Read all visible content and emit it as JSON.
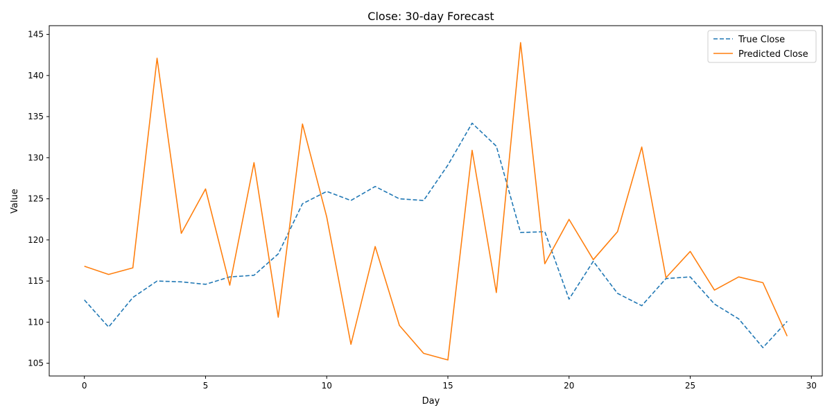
{
  "chart_data": {
    "type": "line",
    "title": "Close: 30-day Forecast",
    "xlabel": "Day",
    "ylabel": "Value",
    "xlim": [
      -1.45,
      30.45
    ],
    "ylim": [
      103.45,
      146.06
    ],
    "xticks": [
      0,
      5,
      10,
      15,
      20,
      25,
      30
    ],
    "yticks": [
      105,
      110,
      115,
      120,
      125,
      130,
      135,
      140,
      145
    ],
    "grid": false,
    "legend_position": "top-right",
    "x": [
      0,
      1,
      2,
      3,
      4,
      5,
      6,
      7,
      8,
      9,
      10,
      11,
      12,
      13,
      14,
      15,
      16,
      17,
      18,
      19,
      20,
      21,
      22,
      23,
      24,
      25,
      26,
      27,
      28,
      29
    ],
    "series": [
      {
        "name": "True Close",
        "color": "#1f77b4",
        "style": "dashed",
        "values": [
          112.7,
          109.4,
          113.0,
          115.0,
          114.9,
          114.6,
          115.5,
          115.7,
          118.3,
          124.4,
          125.9,
          124.8,
          126.5,
          125.0,
          124.8,
          129.1,
          134.2,
          131.4,
          120.9,
          121.0,
          112.8,
          117.4,
          113.5,
          112.0,
          115.3,
          115.5,
          112.2,
          110.4,
          106.9,
          110.1
        ]
      },
      {
        "name": "Predicted Close",
        "color": "#ff7f0e",
        "style": "solid",
        "values": [
          116.8,
          115.8,
          116.6,
          142.1,
          120.8,
          126.2,
          114.5,
          129.4,
          110.6,
          134.1,
          122.8,
          107.3,
          119.2,
          109.6,
          106.2,
          105.4,
          130.9,
          113.6,
          144.0,
          117.1,
          122.5,
          117.6,
          121.0,
          131.3,
          115.4,
          118.6,
          113.9,
          115.5,
          114.8,
          108.3
        ]
      }
    ]
  }
}
